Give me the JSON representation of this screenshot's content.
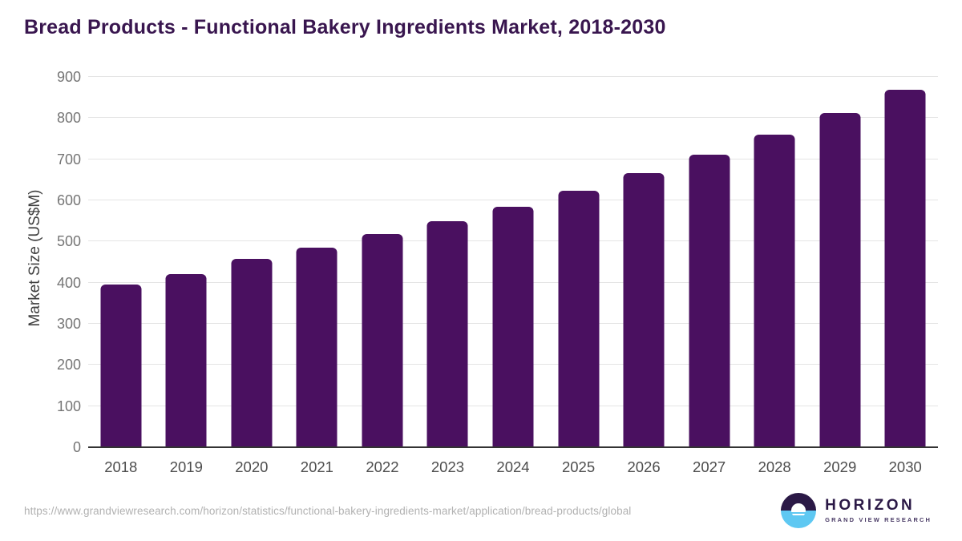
{
  "header": {
    "title": "Bread Products - Functional Bakery Ingredients Market, 2018-2030"
  },
  "chart_data": {
    "type": "bar",
    "title": "Bread Products - Functional Bakery Ingredients Market, 2018-2030",
    "categories": [
      "2018",
      "2019",
      "2020",
      "2021",
      "2022",
      "2023",
      "2024",
      "2025",
      "2026",
      "2027",
      "2028",
      "2029",
      "2030"
    ],
    "values": [
      395,
      420,
      458,
      486,
      518,
      550,
      585,
      624,
      667,
      711,
      760,
      813,
      868
    ],
    "xlabel": "",
    "ylabel": "Market Size (US$M)",
    "ylim": [
      0,
      900
    ],
    "yticks": [
      0,
      100,
      200,
      300,
      400,
      500,
      600,
      700,
      800,
      900
    ],
    "grid": true,
    "legend": false,
    "bar_color": "#4a1060"
  },
  "footer": {
    "source_url": "https://www.grandviewresearch.com/horizon/statistics/functional-bakery-ingredients-market/application/bread-products/global",
    "logo": {
      "name": "HORIZON",
      "subtitle": "GRAND VIEW RESEARCH"
    }
  },
  "colors": {
    "title": "#39164f",
    "bar": "#4a1060",
    "gridline": "#e4e4e4",
    "baseline": "#333333",
    "y_tick_text": "#757575",
    "x_tick_text": "#4d4d4d",
    "axis_title": "#404040",
    "url_text": "#b1b1b1",
    "logo_purple": "#2b1946",
    "logo_blue": "#5ec8f2"
  }
}
